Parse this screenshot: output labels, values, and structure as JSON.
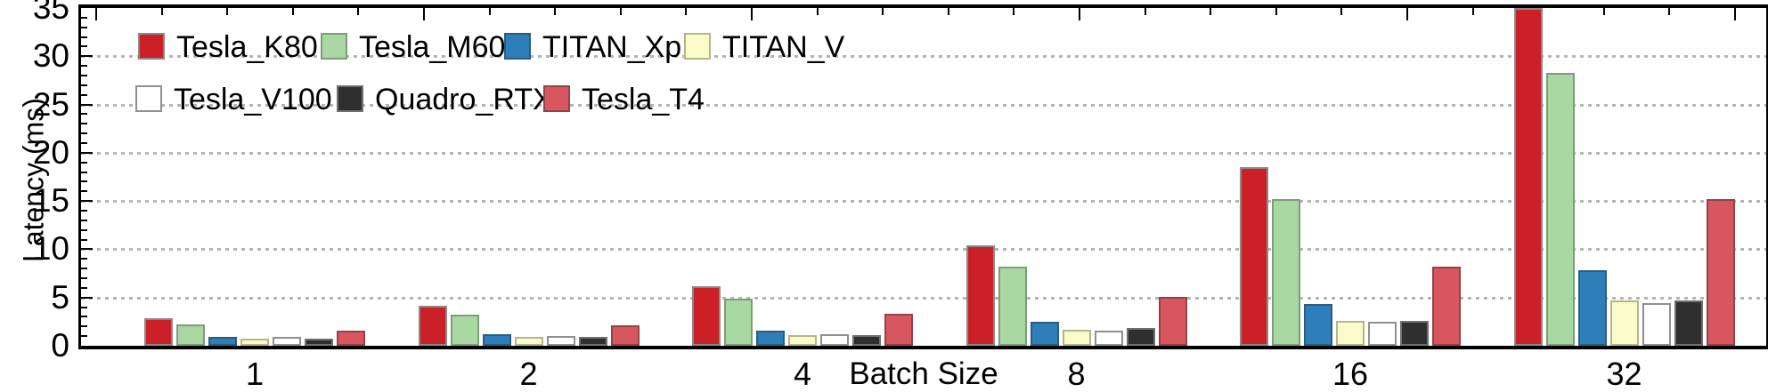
{
  "chart_data": {
    "type": "bar",
    "title": "",
    "xlabel": "Batch Size",
    "ylabel": "Latency (ms)",
    "ylim": [
      0,
      35
    ],
    "yticks": [
      0,
      5,
      10,
      15,
      20,
      25,
      30,
      35
    ],
    "grid": "horizontal dotted gray lines at 5,10,15,20,25,30",
    "legend_position": "top-left inside plot, two rows, no frame",
    "categories": [
      "1",
      "2",
      "4",
      "8",
      "16",
      "32"
    ],
    "series": [
      {
        "name": "Tesla_K80",
        "color": "#cb2027",
        "border": "#8a8a8a",
        "values": [
          2.9,
          4.1,
          6.2,
          10.4,
          18.5,
          35.0
        ]
      },
      {
        "name": "Tesla_M60",
        "color": "#a9d7a2",
        "border": "#7f9c7a",
        "values": [
          2.25,
          3.2,
          4.9,
          8.2,
          15.2,
          28.3
        ]
      },
      {
        "name": "TITAN_Xp",
        "color": "#2e7fb9",
        "border": "#2b5e7d",
        "values": [
          0.95,
          1.2,
          1.6,
          2.5,
          4.3,
          7.8
        ]
      },
      {
        "name": "TITAN_V",
        "color": "#fbfbc9",
        "border": "#b5b58c",
        "values": [
          0.7,
          0.9,
          1.1,
          1.7,
          2.6,
          4.7
        ]
      },
      {
        "name": "Tesla_V100",
        "color": "#ffffff",
        "border": "#8f8f8f",
        "values": [
          0.9,
          1.0,
          1.2,
          1.6,
          2.5,
          4.4
        ]
      },
      {
        "name": "Quadro_RTX",
        "color": "#2f2f2f",
        "border": "#707070",
        "values": [
          0.7,
          0.9,
          1.1,
          1.8,
          2.6,
          4.7
        ]
      },
      {
        "name": "Tesla_T4",
        "color": "#d8575f",
        "border": "#94414a",
        "values": [
          1.55,
          2.1,
          3.3,
          5.1,
          8.2,
          15.2
        ]
      }
    ],
    "notes": "Tesla_K80 bar at batch size 32 is clipped at the 35 ms axis maximum"
  }
}
